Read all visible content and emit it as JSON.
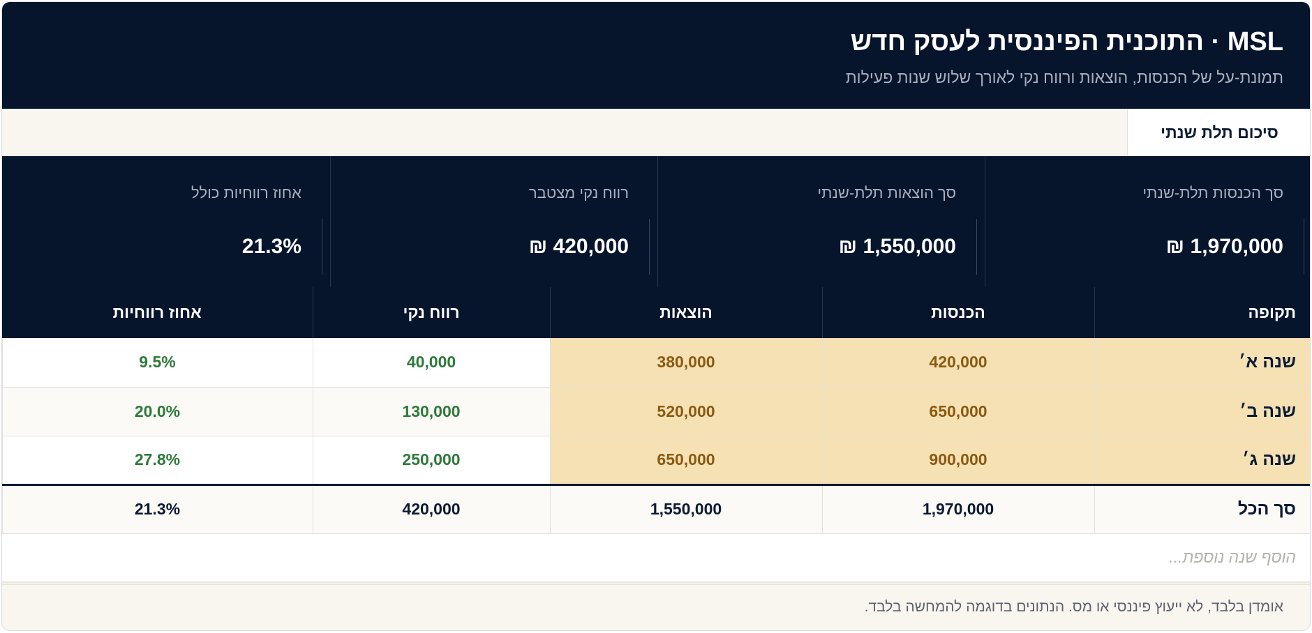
{
  "header": {
    "title": "MSL · התוכנית הפיננסית לעסק חדש",
    "subtitle": "תמונת-על של הכנסות, הוצאות ורווח נקי לאורך שלוש שנות פעילות"
  },
  "tabs": [
    {
      "label": "סיכום תלת שנתי",
      "active": true
    }
  ],
  "kpis": [
    {
      "label": "סך הכנסות תלת-שנתי",
      "value": "1,970,000 ₪"
    },
    {
      "label": "סך הוצאות תלת-שנתי",
      "value": "1,550,000 ₪"
    },
    {
      "label": "רווח נקי מצטבר",
      "value": "420,000 ₪"
    },
    {
      "label": "אחוז רווחיות כולל",
      "value": "21.3%"
    }
  ],
  "table": {
    "headers": [
      "תקופה",
      "הכנסות",
      "הוצאות",
      "רווח נקי",
      "אחוז רווחיות"
    ],
    "rows": [
      {
        "period": "שנה א׳",
        "income": "420,000",
        "expenses": "380,000",
        "net": "40,000",
        "pct": "9.5%"
      },
      {
        "period": "שנה ב׳",
        "income": "650,000",
        "expenses": "520,000",
        "net": "130,000",
        "pct": "20.0%"
      },
      {
        "period": "שנה ג׳",
        "income": "900,000",
        "expenses": "650,000",
        "net": "250,000",
        "pct": "27.8%"
      }
    ],
    "total": {
      "period": "סך הכל",
      "income": "1,970,000",
      "expenses": "1,550,000",
      "net": "420,000",
      "pct": "21.3%"
    },
    "add_row_placeholder": "הוסף שנה נוספת..."
  },
  "footer": {
    "note": "אומדן בלבד, לא ייעוץ פיננסי או מס. הנתונים בדוגמה להמחשה בלבד."
  },
  "colors": {
    "navy": "#06142c",
    "highlight": "#f5e1b4",
    "highlight_text": "#8a5a12",
    "positive": "#2e7a3a"
  }
}
